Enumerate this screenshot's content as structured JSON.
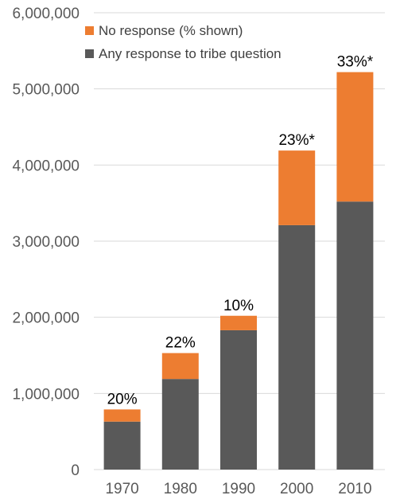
{
  "chart_data": {
    "type": "bar",
    "stacked": true,
    "categories": [
      "1970",
      "1980",
      "1990",
      "2000",
      "2010"
    ],
    "series": [
      {
        "name": "Any response to tribe question",
        "color": "#595959",
        "values": [
          630000,
          1190000,
          1830000,
          3210000,
          3520000
        ]
      },
      {
        "name": "No response (% shown)",
        "color": "#ed7d31",
        "values": [
          160000,
          340000,
          190000,
          980000,
          1700000
        ]
      }
    ],
    "data_labels": [
      "20%",
      "22%",
      "10%",
      "23%*",
      "33%*"
    ],
    "ylim": [
      0,
      6000000
    ],
    "yticks": [
      "0",
      "1,000,000",
      "2,000,000",
      "3,000,000",
      "4,000,000",
      "5,000,000",
      "6,000,000"
    ],
    "ytick_values": [
      0,
      1000000,
      2000000,
      3000000,
      4000000,
      5000000,
      6000000
    ],
    "grid": true,
    "legend_position": "top-left",
    "legend_order": [
      1,
      0
    ]
  }
}
